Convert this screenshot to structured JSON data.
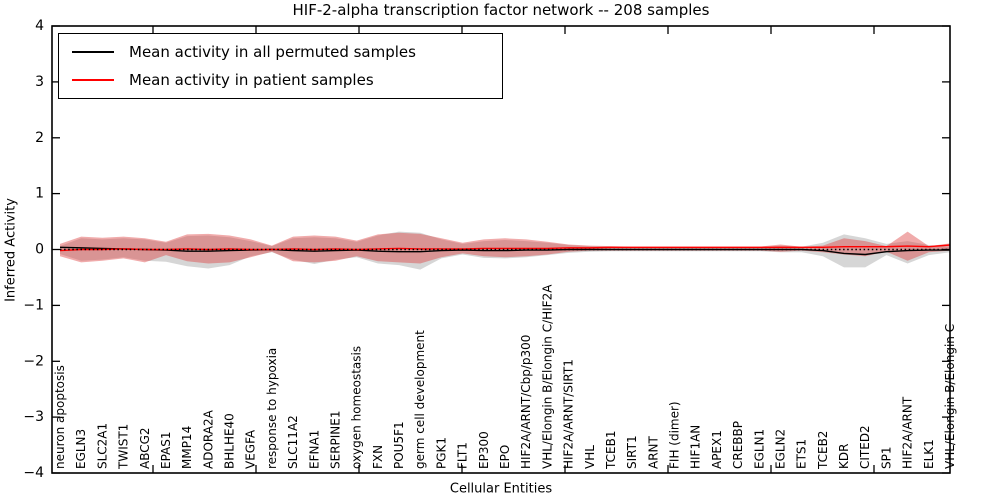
{
  "figure": {
    "title": "HIF-2-alpha transcription factor network -- 208 samples",
    "xlabel": "Cellular Entities",
    "ylabel": "Inferred Activity"
  },
  "legend": {
    "items": [
      {
        "label": "Mean activity in all permuted samples",
        "color": "#000000"
      },
      {
        "label": "Mean activity in patient samples",
        "color": "#ff0000"
      }
    ]
  },
  "chart_data": {
    "type": "line",
    "title": "HIF-2-alpha transcription factor network -- 208 samples",
    "xlabel": "Cellular Entities",
    "ylabel": "Inferred Activity",
    "ylim": [
      -4,
      4
    ],
    "yticks": [
      4,
      3,
      2,
      1,
      0,
      -1,
      -2,
      -3,
      -4
    ],
    "grid": false,
    "legend_position": "upper left",
    "categories": [
      "neuron apoptosis",
      "EGLN3",
      "SLC2A1",
      "TWIST1",
      "ABCG2",
      "EPAS1",
      "MMP14",
      "ADORA2A",
      "BHLHE40",
      "VEGFA",
      "response to hypoxia",
      "SLC11A2",
      "EFNA1",
      "SERPINE1",
      "oxygen homeostasis",
      "FXN",
      "POU5F1",
      "germ cell development",
      "PGK1",
      "FLT1",
      "EP300",
      "EPO",
      "HIF2A/ARNT/Cbp/p300",
      "VHL/Elongin B/Elongin C/HIF2A",
      "HIF2A/ARNT/SIRT1",
      "VHL",
      "TCEB1",
      "SIRT1",
      "ARNT",
      "FIH (dimer)",
      "HIF1AN",
      "APEX1",
      "CREBBP",
      "EGLN1",
      "EGLN2",
      "ETS1",
      "TCEB2",
      "KDR",
      "CITED2",
      "SP1",
      "HIF2A/ARNT",
      "ELK1",
      "VHL/Elongin B/Elongin C"
    ],
    "series": [
      {
        "name": "mean-activity-permuted",
        "label": "Mean activity in all permuted samples",
        "color": "#000000",
        "style": "solid",
        "values": [
          0.04,
          0.03,
          0.02,
          0.01,
          0.0,
          -0.01,
          -0.03,
          -0.03,
          -0.02,
          -0.01,
          0.0,
          -0.02,
          -0.03,
          -0.02,
          -0.01,
          -0.03,
          -0.04,
          -0.04,
          -0.02,
          -0.01,
          -0.02,
          -0.02,
          -0.01,
          -0.01,
          0.0,
          0.0,
          0.0,
          0.0,
          0.0,
          0.0,
          0.0,
          0.0,
          0.0,
          0.0,
          0.0,
          0.0,
          -0.02,
          -0.07,
          -0.09,
          -0.04,
          -0.02,
          -0.01,
          -0.01
        ]
      },
      {
        "name": "mean-activity-patient",
        "label": "Mean activity in patient samples",
        "color": "#ff0000",
        "style": "solid",
        "values": [
          -0.02,
          0.0,
          0.0,
          0.01,
          0.0,
          0.0,
          0.01,
          0.0,
          0.01,
          0.0,
          0.0,
          0.01,
          0.0,
          0.01,
          0.0,
          0.01,
          0.02,
          0.01,
          0.01,
          0.01,
          0.02,
          0.02,
          0.02,
          0.02,
          0.03,
          0.03,
          0.04,
          0.04,
          0.04,
          0.04,
          0.04,
          0.04,
          0.04,
          0.04,
          0.04,
          0.04,
          0.04,
          0.05,
          0.05,
          0.05,
          0.06,
          0.05,
          0.08
        ]
      },
      {
        "name": "zero-reference",
        "label": "",
        "color": "#000000",
        "style": "dotted",
        "values": [
          0,
          0,
          0,
          0,
          0,
          0,
          0,
          0,
          0,
          0,
          0,
          0,
          0,
          0,
          0,
          0,
          0,
          0,
          0,
          0,
          0,
          0,
          0,
          0,
          0,
          0,
          0,
          0,
          0,
          0,
          0,
          0,
          0,
          0,
          0,
          0,
          0,
          0,
          0,
          0,
          0,
          0,
          0
        ]
      }
    ],
    "bands": [
      {
        "name": "permuted-range",
        "color": "#999999",
        "opacity": 0.4,
        "upper": [
          0.06,
          0.2,
          0.18,
          0.2,
          0.18,
          0.12,
          0.24,
          0.25,
          0.22,
          0.15,
          0.06,
          0.2,
          0.22,
          0.2,
          0.14,
          0.25,
          0.32,
          0.3,
          0.18,
          0.1,
          0.15,
          0.17,
          0.15,
          0.12,
          0.08,
          0.06,
          0.05,
          0.04,
          0.04,
          0.04,
          0.04,
          0.04,
          0.04,
          0.04,
          0.07,
          0.05,
          0.12,
          0.27,
          0.2,
          0.1,
          0.15,
          0.08,
          0.05
        ],
        "lower": [
          -0.08,
          -0.2,
          -0.18,
          -0.14,
          -0.2,
          -0.22,
          -0.3,
          -0.34,
          -0.28,
          -0.12,
          -0.05,
          -0.18,
          -0.26,
          -0.18,
          -0.14,
          -0.25,
          -0.28,
          -0.36,
          -0.16,
          -0.09,
          -0.15,
          -0.16,
          -0.14,
          -0.1,
          -0.06,
          -0.04,
          -0.03,
          -0.03,
          -0.03,
          -0.03,
          -0.03,
          -0.03,
          -0.03,
          -0.03,
          -0.05,
          -0.05,
          -0.12,
          -0.32,
          -0.32,
          -0.1,
          -0.25,
          -0.1,
          -0.05
        ]
      },
      {
        "name": "patient-range",
        "color": "#dd4444",
        "opacity": 0.45,
        "upper": [
          0.1,
          0.23,
          0.21,
          0.23,
          0.2,
          0.14,
          0.27,
          0.28,
          0.25,
          0.18,
          0.07,
          0.23,
          0.25,
          0.23,
          0.16,
          0.27,
          0.3,
          0.28,
          0.2,
          0.12,
          0.18,
          0.2,
          0.18,
          0.14,
          0.09,
          0.07,
          0.06,
          0.05,
          0.05,
          0.05,
          0.05,
          0.05,
          0.05,
          0.05,
          0.09,
          0.05,
          0.07,
          0.2,
          0.15,
          0.06,
          0.32,
          0.06,
          0.11
        ],
        "lower": [
          -0.12,
          -0.23,
          -0.2,
          -0.16,
          -0.23,
          -0.1,
          -0.21,
          -0.25,
          -0.23,
          -0.14,
          -0.04,
          -0.21,
          -0.23,
          -0.2,
          -0.12,
          -0.21,
          -0.23,
          -0.25,
          -0.14,
          -0.07,
          -0.12,
          -0.14,
          -0.12,
          -0.09,
          -0.04,
          -0.02,
          -0.02,
          -0.02,
          -0.02,
          -0.02,
          -0.02,
          -0.02,
          -0.02,
          -0.02,
          -0.04,
          -0.02,
          -0.05,
          -0.09,
          -0.12,
          -0.04,
          -0.2,
          -0.05,
          -0.02
        ]
      }
    ]
  }
}
